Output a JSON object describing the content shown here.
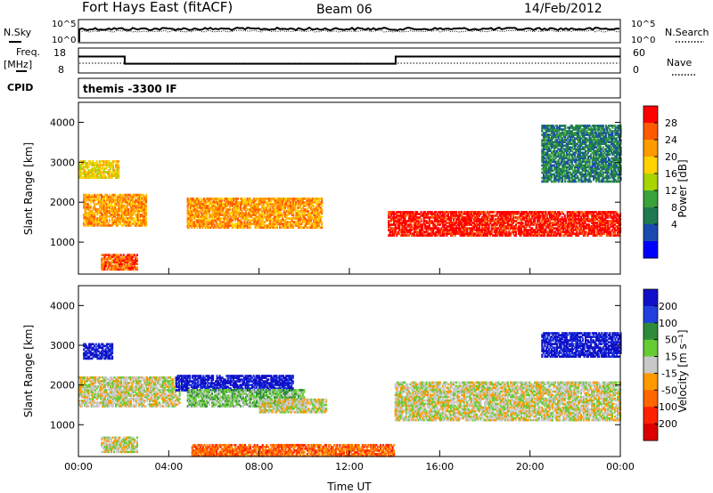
{
  "header": {
    "station": "Fort Hays East (fitACF)",
    "beam": "Beam 06",
    "date": "14/Feb/2012"
  },
  "noise_panel": {
    "left_label": "N.Sky",
    "right_label": "N.Search",
    "left_ticks": [
      "10^5",
      "10^0"
    ],
    "right_ticks": [
      "10^5",
      "10^0"
    ]
  },
  "freq_panel": {
    "left_label": "Freq.",
    "left_unit": "[MHz]",
    "right_label": "Nave",
    "left_ticks": [
      "18",
      "8"
    ],
    "right_ticks": [
      "60",
      "0"
    ],
    "freq_steps": [
      {
        "from_hour": 0,
        "to_hour": 2.05,
        "freq_mhz": 14.6
      },
      {
        "from_hour": 2.05,
        "to_hour": 14.05,
        "freq_mhz": 11.7
      },
      {
        "from_hour": 14.05,
        "to_hour": 24,
        "freq_mhz": 14.6
      }
    ]
  },
  "cpid": {
    "label": "CPID",
    "text": "themis -3300 IF"
  },
  "chart_data": [
    {
      "type": "heatmap",
      "name": "power",
      "ylabel": "Slant Range [km]",
      "xlabel": "Time UT",
      "xlim_hours": [
        0,
        24
      ],
      "ylim": [
        200,
        4500
      ],
      "y_ticks": [
        "1000",
        "2000",
        "3000",
        "4000"
      ],
      "x_ticks": [
        "00:00",
        "04:00",
        "08:00",
        "12:00",
        "16:00",
        "20:00",
        "00:00"
      ],
      "colorbar": {
        "label": "Power [dB]",
        "ticks": [
          "28",
          "24",
          "20",
          "16",
          "12",
          "8",
          "4"
        ],
        "colors": [
          "#ff0000",
          "#ff5a00",
          "#ff9b00",
          "#ffd200",
          "#a8d400",
          "#3aa23a",
          "#1f7a50",
          "#1a4ab0",
          "#0000ff"
        ]
      },
      "regions": [
        {
          "t0": 0.0,
          "t1": 1.8,
          "r0": 2600,
          "r1": 3050,
          "level": 3
        },
        {
          "t0": 0.2,
          "t1": 3.0,
          "r0": 1400,
          "r1": 2200,
          "level": 2
        },
        {
          "t0": 1.0,
          "t1": 2.6,
          "r0": 300,
          "r1": 700,
          "level": 1
        },
        {
          "t0": 4.8,
          "t1": 10.8,
          "r0": 1350,
          "r1": 2100,
          "level": 2
        },
        {
          "t0": 13.7,
          "t1": 24.0,
          "r0": 1150,
          "r1": 1750,
          "level": 0
        },
        {
          "t0": 20.5,
          "t1": 24.0,
          "r0": 2500,
          "r1": 3900,
          "level": 6
        }
      ]
    },
    {
      "type": "heatmap",
      "name": "velocity",
      "ylabel": "Slant Range [km]",
      "xlabel": "Time UT",
      "xlim_hours": [
        0,
        24
      ],
      "ylim": [
        200,
        4500
      ],
      "y_ticks": [
        "1000",
        "2000",
        "3000",
        "4000"
      ],
      "x_ticks": [
        "00:00",
        "04:00",
        "08:00",
        "12:00",
        "16:00",
        "20:00",
        "00:00"
      ],
      "colorbar": {
        "label": "Velocity [m s⁻¹]",
        "ticks": [
          "200",
          "100",
          "50",
          "15",
          "-15",
          "-50",
          "-100",
          "-200"
        ],
        "colors": [
          "#1010c8",
          "#2040e0",
          "#2e8b3a",
          "#66cc33",
          "#c8c8c8",
          "#ff9900",
          "#ff6600",
          "#ff2200",
          "#dd0000"
        ]
      },
      "regions": [
        {
          "t0": 0.2,
          "t1": 1.5,
          "r0": 2650,
          "r1": 3050,
          "level": 0
        },
        {
          "t0": 0.0,
          "t1": 4.5,
          "r0": 1450,
          "r1": 2200,
          "level": 4
        },
        {
          "t0": 1.0,
          "t1": 2.6,
          "r0": 300,
          "r1": 700,
          "level": 4
        },
        {
          "t0": 4.3,
          "t1": 9.5,
          "r0": 1850,
          "r1": 2250,
          "level": 0
        },
        {
          "t0": 4.8,
          "t1": 10.0,
          "r0": 1450,
          "r1": 1900,
          "level": 3
        },
        {
          "t0": 8.0,
          "t1": 11.0,
          "r0": 1300,
          "r1": 1650,
          "level": 4
        },
        {
          "t0": 14.0,
          "t1": 24.0,
          "r0": 1100,
          "r1": 2050,
          "level": 4
        },
        {
          "t0": 20.5,
          "t1": 24.0,
          "r0": 2700,
          "r1": 3300,
          "level": 0
        },
        {
          "t0": 5.0,
          "t1": 14.0,
          "r0": 200,
          "r1": 500,
          "level": 6
        }
      ]
    }
  ]
}
